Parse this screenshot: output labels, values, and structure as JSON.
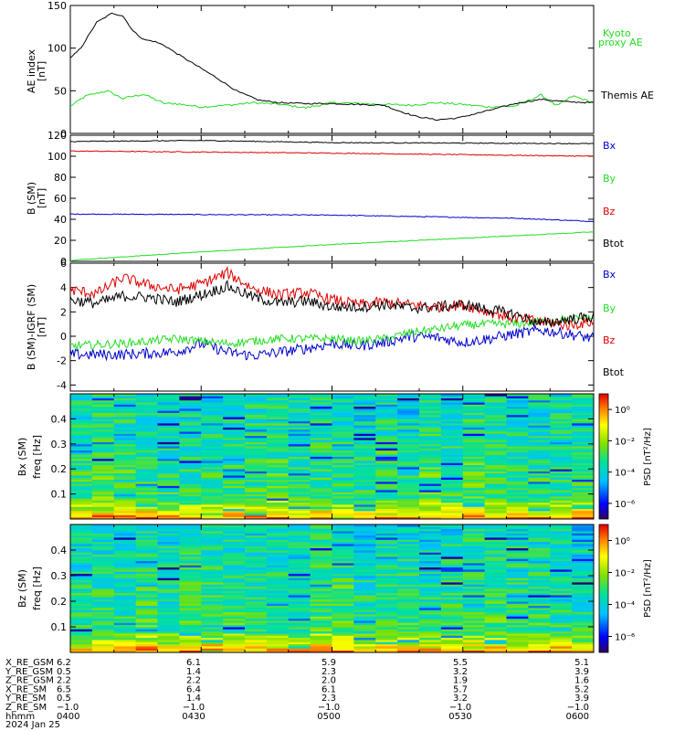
{
  "colors": {
    "black": "#000000",
    "green": "#22dd22",
    "red": "#dd0000",
    "blue": "#0000cc"
  },
  "chart_data": [
    {
      "type": "line",
      "ylabel": "AE index [nT]",
      "ylim": [
        0,
        150
      ],
      "yticks": [
        0,
        50,
        100,
        150
      ],
      "series": [
        {
          "name": "Kyoto proxy AE",
          "color": "#22dd22",
          "x": [
            0,
            0.03,
            0.07,
            0.1,
            0.14,
            0.18,
            0.2,
            0.25,
            0.3,
            0.35,
            0.4,
            0.45,
            0.5,
            0.55,
            0.6,
            0.65,
            0.7,
            0.75,
            0.8,
            0.85,
            0.9,
            0.93,
            0.96,
            1.0
          ],
          "y": [
            32,
            44,
            50,
            41,
            46,
            35,
            35,
            31,
            33,
            36,
            34,
            30,
            36,
            35,
            34,
            33,
            36,
            34,
            31,
            32,
            45,
            32,
            44,
            36
          ]
        },
        {
          "name": "Themis AE",
          "color": "#000000",
          "x": [
            0,
            0.02,
            0.05,
            0.08,
            0.1,
            0.12,
            0.14,
            0.16,
            0.18,
            0.2,
            0.24,
            0.28,
            0.32,
            0.36,
            0.4,
            0.45,
            0.5,
            0.55,
            0.6,
            0.62,
            0.66,
            0.7,
            0.74,
            0.8,
            0.85,
            0.9,
            0.95,
            1.0
          ],
          "y": [
            88,
            100,
            130,
            141,
            138,
            120,
            110,
            108,
            103,
            95,
            80,
            65,
            49,
            39,
            36,
            35,
            35,
            34,
            33,
            28,
            20,
            16,
            18,
            27,
            35,
            40,
            37,
            36
          ]
        }
      ]
    },
    {
      "type": "line",
      "ylabel": "B (SM) [nT]",
      "ylim": [
        0,
        120
      ],
      "yticks": [
        0,
        20,
        40,
        60,
        80,
        100,
        120
      ],
      "series": [
        {
          "name": "Bx",
          "color": "#0000cc",
          "x": [
            0,
            0.5,
            0.85,
            1.0
          ],
          "y": [
            45,
            44,
            41,
            38
          ]
        },
        {
          "name": "By",
          "color": "#22dd22",
          "x": [
            0,
            0.25,
            0.5,
            0.75,
            1.0
          ],
          "y": [
            1,
            9,
            16,
            22,
            28
          ]
        },
        {
          "name": "Bz",
          "color": "#dd0000",
          "x": [
            0,
            0.5,
            1.0
          ],
          "y": [
            105,
            103,
            100
          ]
        },
        {
          "name": "Btot",
          "color": "#000000",
          "x": [
            0,
            0.25,
            0.5,
            1.0
          ],
          "y": [
            114,
            115,
            113,
            112
          ]
        }
      ]
    },
    {
      "type": "line",
      "ylabel": "B (SM)-IGRF (SM) [nT]",
      "ylim": [
        -4.5,
        6
      ],
      "yticks": [
        -4,
        -2,
        0,
        2,
        4,
        6
      ],
      "series": [
        {
          "name": "Bx",
          "color": "#0000cc",
          "x": [
            0,
            0.1,
            0.2,
            0.25,
            0.3,
            0.35,
            0.4,
            0.45,
            0.5,
            0.55,
            0.6,
            0.65,
            0.7,
            0.75,
            0.8,
            0.85,
            0.9,
            0.95,
            1.0
          ],
          "y": [
            -1.5,
            -1.5,
            -1.3,
            -0.6,
            -1.3,
            -1.6,
            -1.3,
            -1.0,
            -0.6,
            -0.8,
            -0.5,
            0.0,
            -0.1,
            -0.5,
            -0.2,
            0.2,
            0.5,
            0.2,
            -0.2
          ]
        },
        {
          "name": "By",
          "color": "#22dd22",
          "x": [
            0,
            0.1,
            0.2,
            0.3,
            0.4,
            0.5,
            0.55,
            0.6,
            0.65,
            0.7,
            0.75,
            0.8,
            0.85,
            0.9,
            0.95,
            1.0
          ],
          "y": [
            -0.8,
            -0.6,
            -0.2,
            -0.6,
            -0.2,
            -0.2,
            -0.4,
            -0.2,
            0.3,
            0.6,
            0.9,
            1.0,
            1.0,
            1.2,
            1.4,
            1.5
          ]
        },
        {
          "name": "Bz",
          "color": "#dd0000",
          "x": [
            0,
            0.05,
            0.1,
            0.15,
            0.2,
            0.25,
            0.3,
            0.35,
            0.4,
            0.45,
            0.5,
            0.55,
            0.6,
            0.65,
            0.7,
            0.75,
            0.8,
            0.85,
            0.9,
            0.95,
            1.0
          ],
          "y": [
            3.8,
            3.5,
            4.8,
            4.2,
            3.8,
            4.3,
            5.2,
            3.9,
            3.4,
            3.6,
            3.0,
            2.6,
            2.8,
            2.6,
            2.4,
            2.6,
            2.0,
            1.5,
            1.2,
            0.9,
            1.2
          ]
        },
        {
          "name": "Btot",
          "color": "#000000",
          "x": [
            0,
            0.05,
            0.1,
            0.15,
            0.2,
            0.25,
            0.3,
            0.35,
            0.4,
            0.45,
            0.5,
            0.55,
            0.6,
            0.65,
            0.7,
            0.75,
            0.8,
            0.85,
            0.9,
            0.95,
            1.0
          ],
          "y": [
            3.0,
            2.7,
            3.3,
            3.2,
            2.8,
            3.4,
            4.1,
            3.2,
            2.7,
            2.9,
            2.4,
            2.4,
            2.6,
            2.3,
            2.4,
            2.6,
            2.2,
            1.8,
            1.0,
            1.4,
            1.6
          ]
        }
      ]
    },
    {
      "type": "heatmap",
      "ylabel": "Bx (SM) freq [Hz]",
      "ylim": [
        0,
        0.5
      ],
      "yticks": [
        0.1,
        0.2,
        0.3,
        0.4
      ],
      "colorbar_label": "PSD [nT²/Hz]",
      "colorbar_ticks": [
        "10⁰",
        "10⁻²",
        "10⁻⁴",
        "10⁻⁶"
      ],
      "colorbar_exponents": [
        0,
        -2,
        -4,
        -6
      ]
    },
    {
      "type": "heatmap",
      "ylabel": "Bz (SM) freq [Hz]",
      "ylim": [
        0,
        0.5
      ],
      "yticks": [
        0.1,
        0.2,
        0.3,
        0.4
      ],
      "colorbar_label": "PSD [nT²/Hz]",
      "colorbar_ticks": [
        "10⁰",
        "10⁻²",
        "10⁻⁴",
        "10⁻⁶"
      ],
      "colorbar_exponents": [
        0,
        -2,
        -4,
        -6
      ]
    }
  ],
  "panel_labels": {
    "ae": [
      {
        "text": "Kyoto",
        "color": "#22dd22"
      },
      {
        "text": "proxy AE",
        "color": "#22dd22"
      },
      {
        "text": "Themis AE",
        "color": "#000000"
      }
    ],
    "b_sm": [
      {
        "text": "Bx",
        "color": "#0000cc"
      },
      {
        "text": "By",
        "color": "#22dd22"
      },
      {
        "text": "Bz",
        "color": "#dd0000"
      },
      {
        "text": "Btot",
        "color": "#000000"
      }
    ],
    "b_igrf": [
      {
        "text": "Bx",
        "color": "#0000cc"
      },
      {
        "text": "By",
        "color": "#22dd22"
      },
      {
        "text": "Bz",
        "color": "#dd0000"
      },
      {
        "text": "Btot",
        "color": "#000000"
      }
    ]
  },
  "ylabels": {
    "ae": [
      "AE index",
      "[nT]"
    ],
    "b_sm": [
      "B (SM)",
      "[nT]"
    ],
    "b_igrf": [
      "B (SM)-IGRF (SM)",
      "[nT]"
    ],
    "bx": [
      "Bx (SM)",
      "freq [Hz]"
    ],
    "bz": [
      "Bz (SM)",
      "freq [Hz]"
    ]
  },
  "ephemeris": {
    "rows": [
      {
        "label": "X_RE_GSM",
        "values": [
          "6.2",
          "6.1",
          "5.9",
          "5.5",
          "5.1"
        ]
      },
      {
        "label": "Y_RE_GSM",
        "values": [
          "0.5",
          "1.4",
          "2.3",
          "3.2",
          "3.9"
        ]
      },
      {
        "label": "Z_RE_GSM",
        "values": [
          "2.2",
          "2.2",
          "2.0",
          "1.9",
          "1.6"
        ]
      },
      {
        "label": "X_RE_SM",
        "values": [
          "6.5",
          "6.4",
          "6.1",
          "5.7",
          "5.2"
        ]
      },
      {
        "label": "Y_RE_SM",
        "values": [
          "0.5",
          "1.4",
          "2.3",
          "3.2",
          "3.9"
        ]
      },
      {
        "label": "Z_RE_SM",
        "values": [
          "−1.0",
          "−1.0",
          "−1.0",
          "−1.0",
          "−1.0"
        ]
      },
      {
        "label": "hhmm",
        "values": [
          "0400",
          "0430",
          "0500",
          "0530",
          "0600"
        ]
      }
    ],
    "date": "2024 Jan 25"
  }
}
